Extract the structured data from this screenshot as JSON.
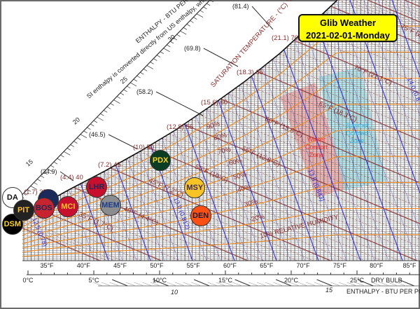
{
  "title": {
    "line1": "Glib Weather",
    "line2": "2021-02-01-Monday"
  },
  "colors": {
    "title_bg": "#ffff00",
    "rh_lines": "#f08a20",
    "wet_bulb_lines": "#8b2a2a",
    "volume_lines": "#3030e0",
    "winter_zone": "#f4a0a0",
    "summer_zone": "#9fe3ec"
  },
  "chart_data": {
    "type": "scatter",
    "chart_kind": "psychrometric chart",
    "x_axis": {
      "label": "DRY BULB",
      "ticks_F": [
        "35°F",
        "40°F",
        "45°F",
        "50°F",
        "55°F",
        "60°F",
        "65°F",
        "70°F",
        "75°F",
        "80°F",
        "85°F"
      ],
      "ticks_C": [
        "0°C",
        "5°C",
        "10°C",
        "15°C",
        "20°C",
        "25°C"
      ]
    },
    "enthalpy_scale": {
      "label": "ENTHALPY - BTU PER PO",
      "note": "SI enthalpy is converted directly from US enthalpy, whic",
      "top_label": "ENTHALPY - BTU PER P",
      "ticks": [
        "15",
        "20",
        "25",
        "30"
      ],
      "bottom_ticks": [
        "10",
        "15"
      ],
      "si_values": [
        "(34.9)",
        "(46.5)",
        "(58.2)",
        "(69.8)",
        "(81.4)"
      ]
    },
    "saturation": {
      "label": "SATURATION TEMPERATURE - (°C) °F",
      "labels": [
        "(1.7) 35",
        "(4.4) 40",
        "(7.2) 45",
        "(10) 50",
        "(12.8) 55",
        "(15.6) 60",
        "(18.3) 65",
        "(21.1) 70"
      ]
    },
    "wet_bulb_labels": [
      "35°F (1.7°C)",
      "40°F (4.4°C)",
      "45°F (7.2°C)",
      "50°F (10°C)",
      "55°F (12.8°C)",
      "60°F (15.6°C)",
      "65°F (18.3°C)",
      "70°F (21.1°C)",
      "75°F (2"
    ],
    "rh_labels": [
      "90%",
      "80%",
      "70%",
      "60%",
      "50%",
      "40%",
      "30%",
      "20%",
      "10% RELATIVE HUMIDITY"
    ],
    "rh_values": [
      0.1,
      0.2,
      0.3,
      0.4,
      0.5,
      0.6,
      0.7,
      0.8,
      0.9
    ],
    "volume_labels": [
      "12.5 (0.78)",
      "13.0 (0.812)",
      "13.5 (0.843)",
      "14.0 (0.8"
    ],
    "zones": [
      {
        "label": [
          "Winter",
          "Comfort",
          "Zone"
        ],
        "color": "#f4a0a0"
      },
      {
        "label": [
          "Summer",
          "Comfort",
          "Zone"
        ],
        "color": "#9fe3ec"
      }
    ],
    "points": [
      {
        "label": "DA",
        "dry_bulb_F": 30.3,
        "bg": "#ffffff",
        "fg": "#111111"
      },
      {
        "label": "DSM",
        "dry_bulb_F": 30.3,
        "bg": "#000000",
        "fg": "#ffd21f"
      },
      {
        "label": "",
        "dry_bulb_F": 35.2,
        "bg": "#1b2a5a",
        "fg": "#ffffff"
      },
      {
        "label": "PIT",
        "dry_bulb_F": 31.8,
        "bg": "#222222",
        "fg": "#ffc125"
      },
      {
        "label": "BOS",
        "dry_bulb_F": 34.6,
        "bg": "#c8242f",
        "fg": "#1b2a5a"
      },
      {
        "label": "MCI",
        "dry_bulb_F": 37.9,
        "bg": "#c8102e",
        "fg": "#ffc125"
      },
      {
        "label": "LHR",
        "dry_bulb_F": 41.8,
        "bg": "#c8102e",
        "fg": "#1b2a5a"
      },
      {
        "label": "MEM",
        "dry_bulb_F": 43.7,
        "bg": "#8a8d8f",
        "fg": "#1b3a8a"
      },
      {
        "label": "PDX",
        "dry_bulb_F": 50.5,
        "bg": "#0b3d24",
        "fg": "#ffd21f"
      },
      {
        "label": "MSY",
        "dry_bulb_F": 55.2,
        "bg": "#f7c325",
        "fg": "#3a2a6a"
      },
      {
        "label": "DEN",
        "dry_bulb_F": 56.0,
        "bg": "#fb4f14",
        "fg": "#1b1b3a"
      }
    ]
  }
}
